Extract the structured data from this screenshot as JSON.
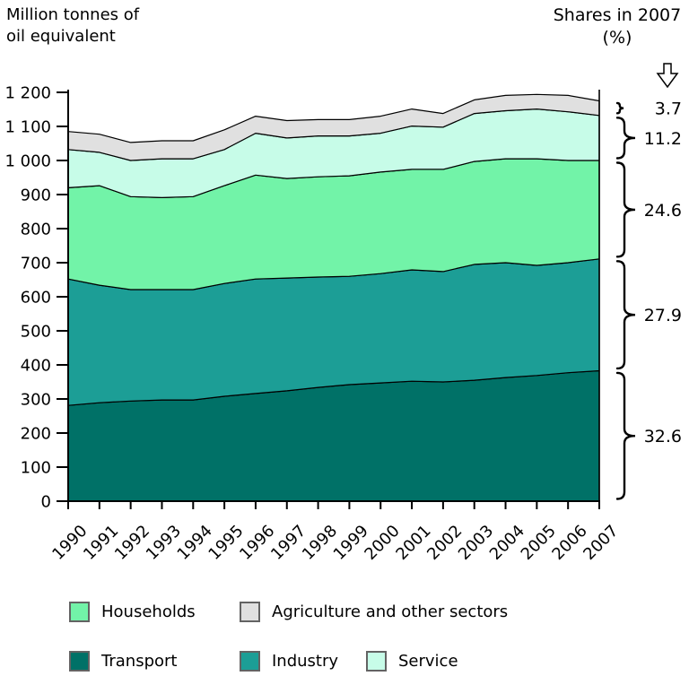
{
  "header": {
    "left_title_line1": "Million tonnes of",
    "left_title_line2": "oil equivalent",
    "right_title_line1": "Shares in 2007",
    "right_title_line2": "(%)"
  },
  "colors": {
    "transport": "#007167",
    "industry": "#1C9E96",
    "households": "#72F3A8",
    "service": "#C7FCE8",
    "agriculture": "#E0E0E0",
    "outline": "#000000"
  },
  "chart_data": {
    "type": "area",
    "stacked": true,
    "title": "",
    "xlabel": "",
    "ylabel": "Million tonnes of oil equivalent",
    "ylim": [
      0,
      1200
    ],
    "ytick_step": 100,
    "ytick_labels": [
      "0",
      "100",
      "200",
      "300",
      "400",
      "500",
      "600",
      "700",
      "800",
      "900",
      "1 000",
      "1 100",
      "1 200"
    ],
    "x": [
      1990,
      1991,
      1992,
      1993,
      1994,
      1995,
      1996,
      1997,
      1998,
      1999,
      2000,
      2001,
      2002,
      2003,
      2004,
      2005,
      2006,
      2007
    ],
    "xtick_labels": [
      "1990",
      "1991",
      "1992",
      "1993",
      "1994",
      "1995",
      "1996",
      "1997",
      "1998",
      "1999",
      "2000",
      "2001",
      "2002",
      "2003",
      "2004",
      "2005",
      "2006",
      "2007"
    ],
    "grid": false,
    "series": [
      {
        "name": "Transport",
        "color": "transport",
        "values": [
          281,
          289,
          294,
          297,
          297,
          308,
          316,
          324,
          334,
          342,
          347,
          352,
          350,
          355,
          363,
          369,
          377,
          383
        ]
      },
      {
        "name": "Industry",
        "color": "industry",
        "values": [
          371,
          345,
          327,
          324,
          324,
          331,
          336,
          331,
          324,
          318,
          321,
          327,
          324,
          340,
          337,
          323,
          323,
          328
        ]
      },
      {
        "name": "Households",
        "color": "households",
        "values": [
          268,
          292,
          273,
          270,
          273,
          287,
          305,
          292,
          294,
          295,
          298,
          295,
          300,
          302,
          305,
          313,
          300,
          289
        ]
      },
      {
        "name": "Service",
        "color": "service",
        "values": [
          112,
          98,
          106,
          114,
          111,
          106,
          123,
          119,
          120,
          117,
          114,
          127,
          124,
          141,
          141,
          146,
          143,
          132
        ]
      },
      {
        "name": "Agriculture and other sectors",
        "color": "agriculture",
        "values": [
          53,
          53,
          53,
          53,
          53,
          58,
          50,
          51,
          48,
          48,
          50,
          50,
          40,
          40,
          45,
          43,
          48,
          43
        ]
      }
    ],
    "shares_2007": [
      {
        "series": "Agriculture and other sectors",
        "value": "3.7"
      },
      {
        "series": "Service",
        "value": "11.2"
      },
      {
        "series": "Households",
        "value": "24.6"
      },
      {
        "series": "Industry",
        "value": "27.9"
      },
      {
        "series": "Transport",
        "value": "32.6"
      }
    ]
  },
  "legend": {
    "rows": [
      [
        {
          "label": "Households",
          "color": "households"
        },
        {
          "label": "Agriculture and other sectors",
          "color": "agriculture"
        }
      ],
      [
        {
          "label": "Transport",
          "color": "transport"
        },
        {
          "label": "Industry",
          "color": "industry"
        },
        {
          "label": "Service",
          "color": "service"
        }
      ]
    ]
  }
}
